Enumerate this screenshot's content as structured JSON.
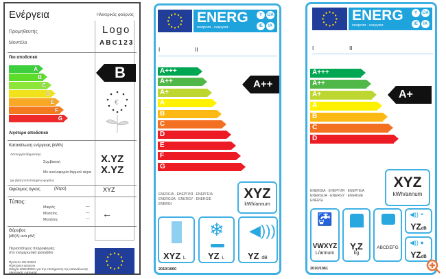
{
  "label1": {
    "title": "Ενέργεια",
    "appliance": "Ηλεκτρικός φούρνος",
    "supplier": "Προμηθευτής",
    "model": "Μοντέλο",
    "logo": "Logo",
    "model_code": "ABC123",
    "more_efficient": "Πιο αποδοτικό",
    "less_efficient": "Λιγότερο αποδοτικό",
    "classes": [
      "A",
      "B",
      "C",
      "D",
      "E",
      "F",
      "G"
    ],
    "class_colors": [
      "#3ecf3e",
      "#5edc2a",
      "#8ee53a",
      "#f2e21c",
      "#f9a825",
      "#f47a1f",
      "#ee2a2a"
    ],
    "rating": "B",
    "consumption_label": "Κατανάλωση ενέργειας (kWh)",
    "heating_mode": "Λειτουργία θέρμανσης:",
    "conventional": "Συμβατική",
    "fan_forced": "Με κυκλοφορία θερμού αέρα",
    "standard_load": "(με βάση τυποποιημένο φορτίο)",
    "conventional_value": "X.YZ",
    "fan_value": "X.YZ",
    "volume_label": "Ωφέλιμος όγκος",
    "volume_unit": "(λίτρα)",
    "volume_value": "XYZ",
    "type_label": "Τύπος:",
    "sizes": [
      "Μικρός",
      "Μεσαίος",
      "Μεγάλος"
    ],
    "size_dash": "—",
    "selected_size": "Μεσαίος",
    "noise_label": "Θόρυβος",
    "noise_unit": "[dB(A) ανά pW]",
    "footer": [
      "Περισσότερες πληροφορίες",
      "στο ενημερωτικό φυλλάδιο",
      "Πρότυπο EN 50304",
      "Ηλεκτρικοί φούρνοι",
      "Οδηγία 2002/40/ΕΚ για την επισήμανση της κατανάλωσης",
      "ηλεκτρικής ενέργειας"
    ]
  },
  "label2": {
    "brand": "ENERG",
    "subtitle": "енергия · ενεργεια",
    "langs": [
      "Y",
      "IJA",
      "IE",
      "IA"
    ],
    "col1": "I",
    "col2": "II",
    "classes": [
      "A+++",
      "A++",
      "A+",
      "A",
      "B",
      "C",
      "D",
      "E",
      "F",
      "G"
    ],
    "class_colors": [
      "#00a651",
      "#50b848",
      "#bed630",
      "#fff200",
      "#fdb913",
      "#f37021",
      "#ed1c24",
      "#ed1c24",
      "#ed1c24",
      "#ed1c24"
    ],
    "rating": "A++",
    "energy_words": [
      "ENERGIA · ЕНЕРГИЯ · ΕΝΕΡΓΕΙΑ",
      "ENERGIJA · ENERGY · ENERGIE",
      "ENERGI"
    ],
    "consumption": "XYZ",
    "consumption_unit": "kWh/annum",
    "fresh_volume": "XYZ",
    "fresh_unit": "L",
    "freezer_volume": "YZ",
    "freezer_unit": "L",
    "noise": "YZ",
    "noise_unit": "dB",
    "regulation": "2010/1060"
  },
  "label3": {
    "brand": "ENERG",
    "subtitle": "енергия · ενεργεια",
    "langs": [
      "Y",
      "IJA",
      "IE",
      "IA"
    ],
    "col1": "I",
    "col2": "II",
    "classes": [
      "A+++",
      "A++",
      "A+",
      "A",
      "B",
      "C",
      "D"
    ],
    "class_colors": [
      "#00a651",
      "#50b848",
      "#bed630",
      "#fff200",
      "#fdb913",
      "#f37021",
      "#ed1c24"
    ],
    "rating": "A+",
    "energy_words": [
      "ENERGIA · ЕНЕРГИЯ · ΕΝΕΡΓΕΙΑ",
      "ENERGIJA · ENERGY · ENERGIE",
      "ENERGI"
    ],
    "consumption": "XYZ",
    "consumption_unit": "kWh/annum",
    "water": "VWXYZ",
    "water_unit": "L/annum",
    "capacity": "Y,Z",
    "capacity_unit": "kg",
    "spin_class": "ABCDEFG",
    "wash_noise": "YZ",
    "spin_noise": "YZ",
    "noise_unit": "dB",
    "regulation": "2010/1061"
  },
  "accent": "#3fb0e3"
}
